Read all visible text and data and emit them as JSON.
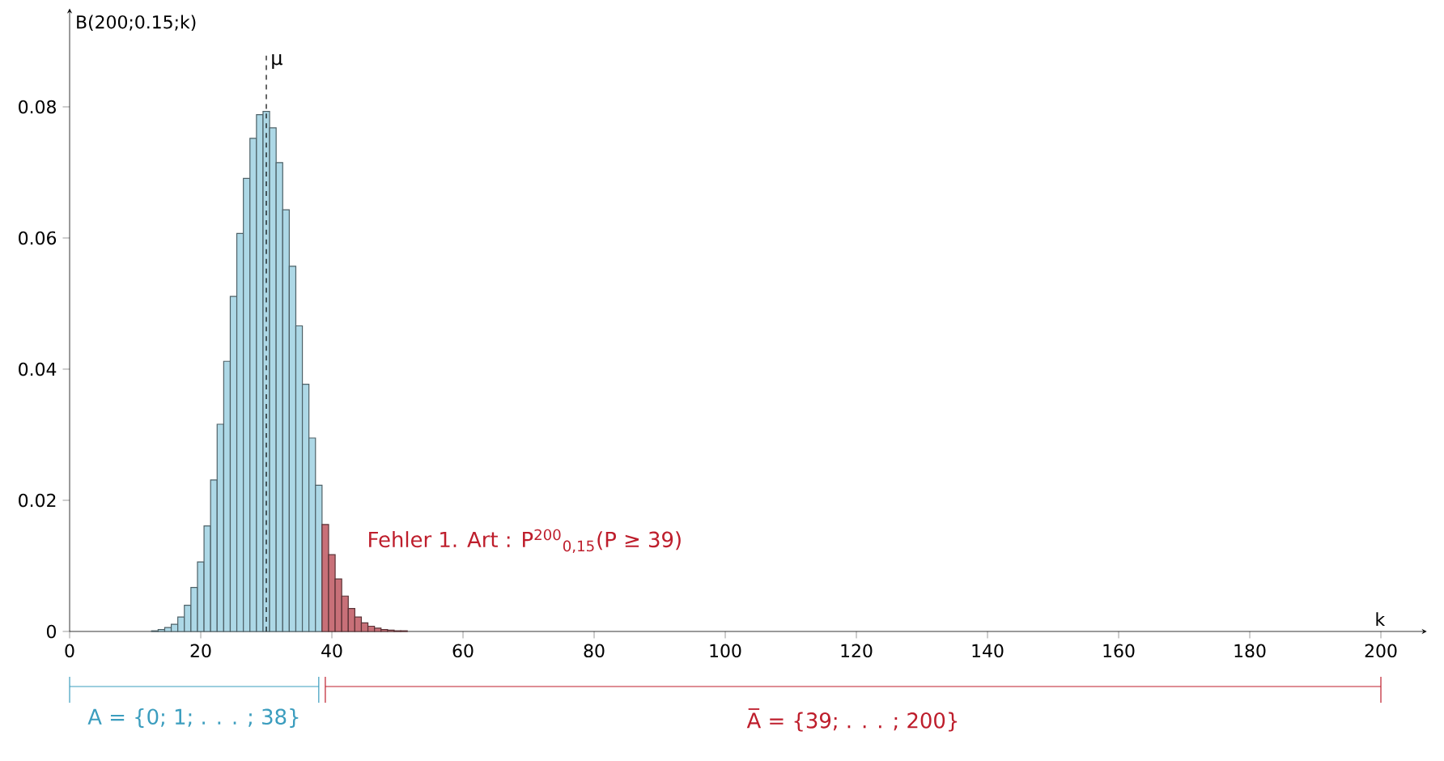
{
  "chart_data": {
    "type": "bar",
    "ylabel": "B(200;0.15;k)",
    "xlabel": "k",
    "x": [
      13,
      14,
      15,
      16,
      17,
      18,
      19,
      20,
      21,
      22,
      23,
      24,
      25,
      26,
      27,
      28,
      29,
      30,
      31,
      32,
      33,
      34,
      35,
      36,
      37,
      38,
      39,
      40,
      41,
      42,
      43,
      44,
      45,
      46,
      47,
      48,
      49,
      50,
      51
    ],
    "values": [
      0.0001,
      0.0003,
      0.0006,
      0.0011,
      0.0022,
      0.004,
      0.0067,
      0.0106,
      0.0161,
      0.0231,
      0.0316,
      0.0412,
      0.0511,
      0.0607,
      0.0691,
      0.0752,
      0.0788,
      0.0793,
      0.0768,
      0.0715,
      0.0643,
      0.0557,
      0.0466,
      0.0377,
      0.0295,
      0.0223,
      0.0163,
      0.0117,
      0.008,
      0.0054,
      0.0035,
      0.0022,
      0.0013,
      0.0008,
      0.0005,
      0.0003,
      0.0002,
      0.0001,
      0.0001
    ],
    "colors": [
      "#add8e6",
      "#add8e6",
      "#add8e6",
      "#add8e6",
      "#add8e6",
      "#add8e6",
      "#add8e6",
      "#add8e6",
      "#add8e6",
      "#add8e6",
      "#add8e6",
      "#add8e6",
      "#add8e6",
      "#add8e6",
      "#add8e6",
      "#add8e6",
      "#add8e6",
      "#add8e6",
      "#add8e6",
      "#add8e6",
      "#add8e6",
      "#add8e6",
      "#add8e6",
      "#add8e6",
      "#add8e6",
      "#add8e6",
      "#c87078",
      "#c87078",
      "#c87078",
      "#c87078",
      "#c87078",
      "#c87078",
      "#c87078",
      "#c87078",
      "#c87078",
      "#c87078",
      "#c87078",
      "#c87078",
      "#c87078"
    ],
    "xlim": [
      0,
      207
    ],
    "ylim": [
      0,
      0.095
    ],
    "xticks": [
      0,
      20,
      40,
      60,
      80,
      100,
      120,
      140,
      160,
      180,
      200
    ],
    "yticks": [
      0,
      0.02,
      0.04,
      0.06,
      0.08
    ],
    "ref_lines": [
      {
        "axis": "x",
        "value": 30,
        "label": "μ",
        "line_style": "dashed",
        "color": "#000000"
      }
    ],
    "annotations": [
      "Fehler 1. Art : P$^{200}$$_{0,15}$(P ≥ 39)",
      "A = {0; 1; . . . ; 38}",
      "A̅ = {39; . . . ; 200}"
    ],
    "grid": false
  }
}
